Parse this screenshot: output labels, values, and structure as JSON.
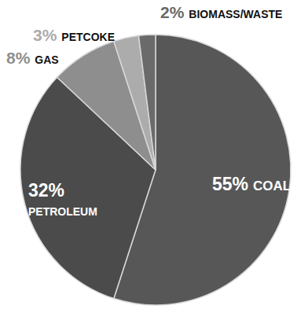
{
  "chart_data": {
    "type": "pie",
    "categories": [
      "COAL",
      "PETROLEUM",
      "GAS",
      "PETCOKE",
      "BIOMASS/WASTE"
    ],
    "values": [
      55,
      32,
      8,
      3,
      2
    ],
    "value_labels": [
      "55%",
      "32%",
      "8%",
      "3%",
      "2%"
    ],
    "colors": [
      "#575757",
      "#4b4b4b",
      "#8e8e8e",
      "#acacac",
      "#6a6a6a"
    ],
    "data_labels": true
  }
}
